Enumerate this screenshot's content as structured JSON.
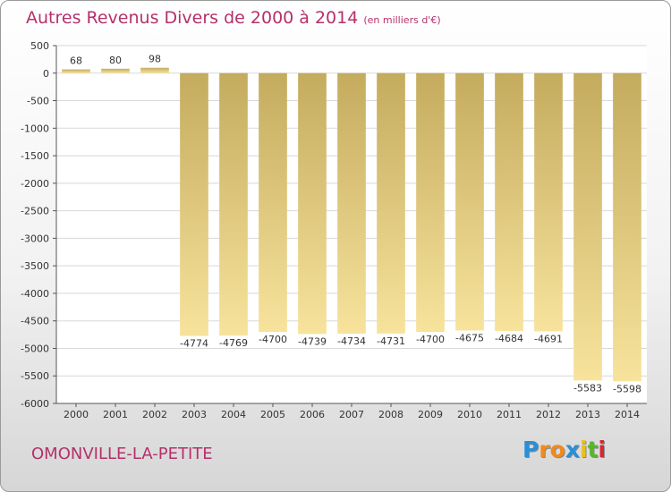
{
  "chart": {
    "title": "Autres Revenus Divers de 2000 à 2014",
    "subtitle": "(en milliers d'€)",
    "location": "OMONVILLE-LA-PETITE"
  },
  "logo": {
    "letters": [
      "P",
      "r",
      "o",
      "x",
      "i",
      "t",
      "i"
    ],
    "colors": [
      "#2a8fd6",
      "#f08a1c",
      "#f08a1c",
      "#2a8fd6",
      "#e8c21c",
      "#59b52c",
      "#d9262e"
    ]
  },
  "chart_data": {
    "type": "bar",
    "title": "Autres Revenus Divers de 2000 à 2014",
    "subtitle": "(en milliers d'€)",
    "xlabel": "",
    "ylabel": "",
    "categories": [
      "2000",
      "2001",
      "2002",
      "2003",
      "2004",
      "2005",
      "2006",
      "2007",
      "2008",
      "2009",
      "2010",
      "2011",
      "2012",
      "2013",
      "2014"
    ],
    "values": [
      68,
      80,
      98,
      -4774,
      -4769,
      -4700,
      -4739,
      -4734,
      -4731,
      -4700,
      -4675,
      -4684,
      -4691,
      -5583,
      -5598
    ],
    "ylim": [
      -6000,
      500
    ],
    "yticks": [
      500,
      0,
      -500,
      -1000,
      -1500,
      -2000,
      -2500,
      -3000,
      -3500,
      -4000,
      -4500,
      -5000,
      -5500,
      -6000
    ],
    "grid": true,
    "bar_color_light": "#f7e39c",
    "bar_color_dark": "#c4ab5e",
    "grid_color": "#d8d8d8"
  }
}
